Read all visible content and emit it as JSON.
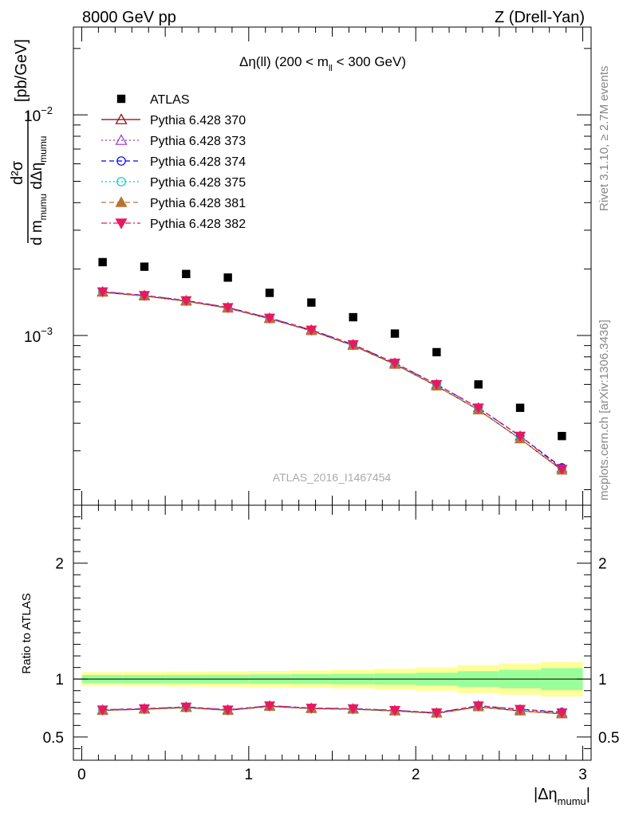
{
  "header": {
    "left": "8000 GeV pp",
    "right": "Z (Drell-Yan)"
  },
  "side_labels": {
    "rivet": "Rivet 3.1.10, ≥ 2.7M events",
    "mcplots": "mcplots.cern.ch [arXiv:1306.3436]"
  },
  "watermark": "ATLAS_2016_I1467454",
  "colors": {
    "data": "#000000",
    "band_inner": "#99ff99",
    "band_outer": "#ffff99",
    "s370": "#8b0000",
    "s373": "#9933cc",
    "s374": "#0000ff",
    "s375": "#00ccbb",
    "s381": "#b87333",
    "s382": "#e8195e"
  },
  "chart_data": [
    {
      "type": "scatter",
      "title_parts": {
        "pre": "Δη(ll) (200 < m",
        "sub": "ll",
        "post": " < 300 GeV)"
      },
      "ylabel_parts": {
        "num": "d²σ",
        "den_pre": "d m",
        "den_sub": "mumu",
        "den_mid": " dΔη",
        "den_sub2": "mumu",
        "unit": "[pb/GeV]"
      },
      "yscale": "log",
      "ylim": [
        0.00017,
        0.025
      ],
      "xlim": [
        -0.05,
        3.05
      ],
      "ytick_labels": [
        {
          "value": 0.001,
          "base": "10",
          "exp": "−3"
        },
        {
          "value": 0.01,
          "base": "10",
          "exp": "−2"
        }
      ],
      "x": [
        0.125,
        0.375,
        0.625,
        0.875,
        1.125,
        1.375,
        1.625,
        1.875,
        2.125,
        2.375,
        2.625,
        2.875
      ],
      "data_series": {
        "name": "ATLAS",
        "values": [
          0.00215,
          0.00205,
          0.0019,
          0.00183,
          0.00156,
          0.00141,
          0.00121,
          0.00102,
          0.00084,
          0.0006,
          0.00047,
          0.00035
        ]
      },
      "series": [
        {
          "name": "Pythia 6.428 370",
          "style": "solid",
          "marker": "triangle-open",
          "color_key": "s370",
          "values": [
            0.00157,
            0.00151,
            0.00143,
            0.00133,
            0.00119,
            0.00105,
            0.0009,
            0.00074,
            0.00059,
            0.00046,
            0.00034,
            0.000245
          ]
        },
        {
          "name": "Pythia 6.428 373",
          "style": "dotted",
          "marker": "triangle-open",
          "color_key": "s373",
          "values": [
            0.00158,
            0.00152,
            0.00144,
            0.00134,
            0.0012,
            0.00106,
            0.00091,
            0.00075,
            0.0006,
            0.00047,
            0.00035,
            0.00025
          ]
        },
        {
          "name": "Pythia 6.428 374",
          "style": "dashed",
          "marker": "circle-open",
          "color_key": "s374",
          "values": [
            0.00158,
            0.00152,
            0.00144,
            0.00134,
            0.0012,
            0.00106,
            0.00091,
            0.00075,
            0.0006,
            0.00047,
            0.00035,
            0.000252
          ]
        },
        {
          "name": "Pythia 6.428 375",
          "style": "dotted",
          "marker": "circle-open",
          "color_key": "s375",
          "values": [
            0.00157,
            0.00151,
            0.00143,
            0.00133,
            0.00119,
            0.00105,
            0.0009,
            0.00074,
            0.00059,
            0.00046,
            0.00034,
            0.000246
          ]
        },
        {
          "name": "Pythia 6.428 381",
          "style": "dashed",
          "marker": "triangle-filled",
          "color_key": "s381",
          "values": [
            0.00157,
            0.00151,
            0.00143,
            0.00133,
            0.00119,
            0.00105,
            0.0009,
            0.00074,
            0.00059,
            0.00046,
            0.00034,
            0.000245
          ]
        },
        {
          "name": "Pythia 6.428 382",
          "style": "dashdot",
          "marker": "triangledown-filled",
          "color_key": "s382",
          "values": [
            0.00158,
            0.00152,
            0.00144,
            0.00134,
            0.0012,
            0.00106,
            0.00091,
            0.00075,
            0.0006,
            0.00047,
            0.00035,
            0.000248
          ]
        }
      ]
    },
    {
      "type": "line",
      "ylabel": "Ratio to ATLAS",
      "ylim": [
        0.3,
        2.5
      ],
      "xlim": [
        -0.05,
        3.05
      ],
      "ytick_labels": [
        "0.5",
        "1",
        "2"
      ],
      "ytick_values": [
        0.5,
        1,
        2
      ],
      "xtick_labels": [
        "0",
        "1",
        "2",
        "3"
      ],
      "xtick_values": [
        0,
        1,
        2,
        3
      ],
      "xlabel_parts": {
        "pre": "|Δη",
        "sub": "mumu",
        "post": "|"
      },
      "reference_line": 1,
      "band_edges": [
        0.0,
        0.25,
        0.5,
        0.75,
        1.0,
        1.25,
        1.5,
        1.75,
        2.0,
        2.25,
        2.5,
        2.75,
        3.0
      ],
      "band_inner": [
        0.035,
        0.036,
        0.037,
        0.038,
        0.04,
        0.042,
        0.045,
        0.048,
        0.055,
        0.068,
        0.08,
        0.095
      ],
      "band_outer": [
        0.06,
        0.062,
        0.064,
        0.066,
        0.07,
        0.075,
        0.08,
        0.09,
        0.1,
        0.12,
        0.135,
        0.15
      ],
      "x": [
        0.125,
        0.375,
        0.625,
        0.875,
        1.125,
        1.375,
        1.625,
        1.875,
        2.125,
        2.375,
        2.625,
        2.875
      ],
      "series": [
        {
          "name": "Pythia 6.428 370",
          "color_key": "s370",
          "marker": "triangle-open",
          "style": "solid",
          "values": [
            0.73,
            0.74,
            0.755,
            0.73,
            0.765,
            0.745,
            0.74,
            0.725,
            0.705,
            0.76,
            0.725,
            0.7
          ]
        },
        {
          "name": "Pythia 6.428 373",
          "color_key": "s373",
          "marker": "triangle-open",
          "style": "dotted",
          "values": [
            0.735,
            0.745,
            0.76,
            0.735,
            0.77,
            0.75,
            0.745,
            0.73,
            0.71,
            0.77,
            0.735,
            0.71
          ]
        },
        {
          "name": "Pythia 6.428 374",
          "color_key": "s374",
          "marker": "circle-open",
          "style": "dashed",
          "values": [
            0.735,
            0.745,
            0.76,
            0.735,
            0.77,
            0.75,
            0.745,
            0.73,
            0.71,
            0.77,
            0.74,
            0.715
          ]
        },
        {
          "name": "Pythia 6.428 375",
          "color_key": "s375",
          "marker": "circle-open",
          "style": "dotted",
          "values": [
            0.73,
            0.74,
            0.75,
            0.73,
            0.765,
            0.745,
            0.74,
            0.725,
            0.705,
            0.765,
            0.73,
            0.705
          ]
        },
        {
          "name": "Pythia 6.428 381",
          "color_key": "s381",
          "marker": "triangle-filled",
          "style": "dashed",
          "values": [
            0.73,
            0.74,
            0.755,
            0.73,
            0.765,
            0.745,
            0.74,
            0.725,
            0.705,
            0.76,
            0.725,
            0.7
          ]
        },
        {
          "name": "Pythia 6.428 382",
          "color_key": "s382",
          "marker": "triangledown-filled",
          "style": "dashdot",
          "values": [
            0.735,
            0.745,
            0.76,
            0.735,
            0.77,
            0.75,
            0.745,
            0.73,
            0.71,
            0.77,
            0.74,
            0.71
          ]
        }
      ]
    }
  ]
}
